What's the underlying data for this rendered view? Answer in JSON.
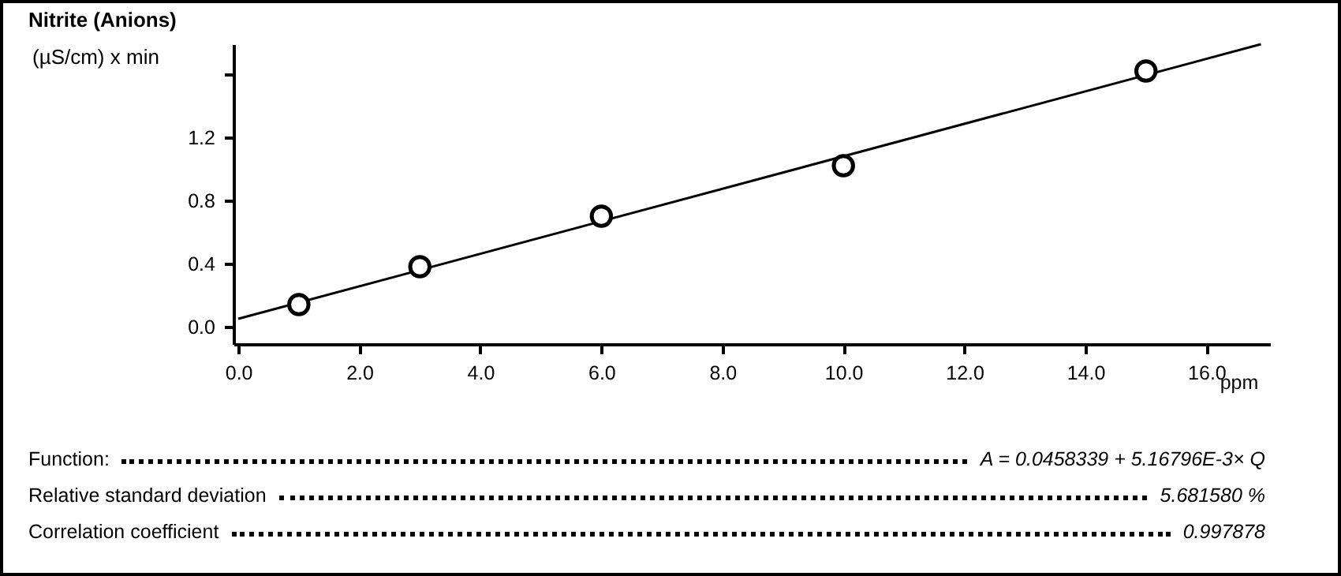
{
  "chart_data": {
    "type": "scatter",
    "title": "Nitrite (Anions)",
    "xlabel": "ppm",
    "ylabel": "(µS/cm) x min",
    "xlim": [
      -0.08,
      17.05
    ],
    "xticks": [
      {
        "value": 0,
        "label": "0.0"
      },
      {
        "value": 2,
        "label": "2.0"
      },
      {
        "value": 4,
        "label": "4.0"
      },
      {
        "value": 6,
        "label": "6.0"
      },
      {
        "value": 8,
        "label": "8.0"
      },
      {
        "value": 10,
        "label": "10.0"
      },
      {
        "value": 12,
        "label": "12.0"
      },
      {
        "value": 14,
        "label": "14.0"
      },
      {
        "value": 16,
        "label": "16.0"
      }
    ],
    "ylim": [
      -0.11,
      1.79
    ],
    "yticks": [
      {
        "value": 0,
        "label": "0.0"
      },
      0.4,
      0.8,
      1.2,
      {
        "value": 1.6,
        "label": null
      }
    ],
    "series": [
      {
        "color": "#000000",
        "marker": "circle",
        "x": [
          1,
          3,
          6,
          10,
          15
        ],
        "values": [
          0.14,
          0.38,
          0.7,
          1.02,
          1.62
        ]
      },
      {
        "type": "line",
        "color": "#000000",
        "marker": "none",
        "line_style": "solid",
        "x": [
          0,
          16.9
        ],
        "values": [
          0.05,
          1.79
        ]
      }
    ],
    "annotations": [
      "Function:",
      "A = 0.0458339 + 5.16796E-3× Q",
      "Relative standard deviation",
      "5.681580 %",
      "Correlation coefficient",
      "0.997878"
    ]
  }
}
